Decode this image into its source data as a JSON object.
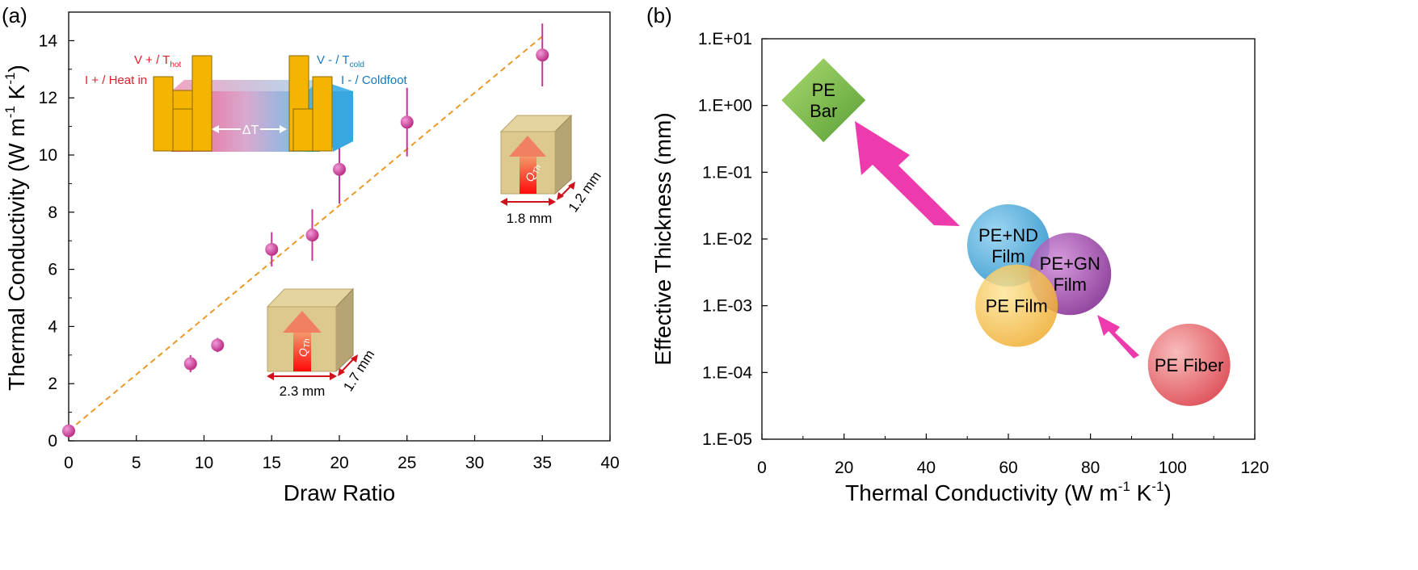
{
  "chart_data": [
    {
      "panel_label": "(a)",
      "type": "scatter",
      "xlabel": "Draw Ratio",
      "ylabel": "Thermal Conductivity (W m",
      "ylabel_sup1": "-1",
      "ylabel_mid": " K",
      "ylabel_sup2": "-1",
      "ylabel_end": ")",
      "xlim": [
        0,
        40
      ],
      "ylim": [
        0,
        15
      ],
      "xticks": [
        0,
        5,
        10,
        15,
        20,
        25,
        30,
        35,
        40
      ],
      "yticks": [
        0,
        2,
        4,
        6,
        8,
        10,
        12,
        14
      ],
      "points": [
        {
          "x": 0,
          "y": 0.35,
          "err": 0.15
        },
        {
          "x": 9,
          "y": 2.7,
          "err": 0.3
        },
        {
          "x": 11,
          "y": 3.35,
          "err": 0.25
        },
        {
          "x": 15,
          "y": 6.7,
          "err": 0.6
        },
        {
          "x": 18,
          "y": 7.2,
          "err": 0.9
        },
        {
          "x": 20,
          "y": 9.5,
          "err": 1.2
        },
        {
          "x": 25,
          "y": 11.15,
          "err": 1.2
        },
        {
          "x": 35,
          "y": 13.5,
          "err": 1.1
        }
      ],
      "trendline": {
        "x": [
          0,
          35
        ],
        "y": [
          0.35,
          14.15
        ]
      },
      "colors": {
        "marker": "#c9359b",
        "trend": "#e89a2a"
      },
      "annotations": {
        "v_plus": "V + / T",
        "v_plus_sub": "hot",
        "i_plus": "I + / Heat in",
        "v_minus": "V - / T",
        "v_minus_sub": "cold",
        "i_minus": "I - / Coldfoot",
        "delta_t": "ΔT",
        "flux_label": "Q",
        "flux_sub": "Th",
        "big_width": "2.3 mm",
        "big_depth": "1.7 mm",
        "small_width": "1.8 mm",
        "small_depth": "1.2 mm"
      }
    },
    {
      "panel_label": "(b)",
      "type": "scatter",
      "scale_y": "log",
      "xlabel": "Thermal Conductivity (W m",
      "xlabel_sup1": "-1",
      "xlabel_mid": " K",
      "xlabel_sup2": "-1",
      "xlabel_end": ")",
      "ylabel": "Effective Thickness (mm)",
      "xlim": [
        0,
        120
      ],
      "ylim": [
        1e-05,
        10
      ],
      "xticks": [
        0,
        20,
        40,
        60,
        80,
        100,
        120
      ],
      "yticks": [
        "1.E-05",
        "1.E-04",
        "1.E-03",
        "1.E-02",
        "1.E-01",
        "1.E+00",
        "1.E+01"
      ],
      "items": [
        {
          "label1": "PE",
          "label2": "Bar",
          "x": 15,
          "y": 1.2,
          "shape": "diamond",
          "color": "#7cb83a"
        },
        {
          "label1": "PE+ND",
          "label2": "Film",
          "x": 60,
          "y": 0.008,
          "shape": "circle",
          "color": "#3aa6d8"
        },
        {
          "label1": "PE+GN",
          "label2": "Film",
          "x": 75,
          "y": 0.003,
          "shape": "circle",
          "color": "#9a3aa6"
        },
        {
          "label1": "PE Film",
          "label2": "",
          "x": 62,
          "y": 0.001,
          "shape": "circle",
          "color": "#f0b93a"
        },
        {
          "label1": "PE Fiber",
          "label2": "",
          "x": 104,
          "y": 0.00013,
          "shape": "circle",
          "color": "#e04a4a"
        }
      ],
      "arrow_color": "#ec2fa8"
    }
  ]
}
